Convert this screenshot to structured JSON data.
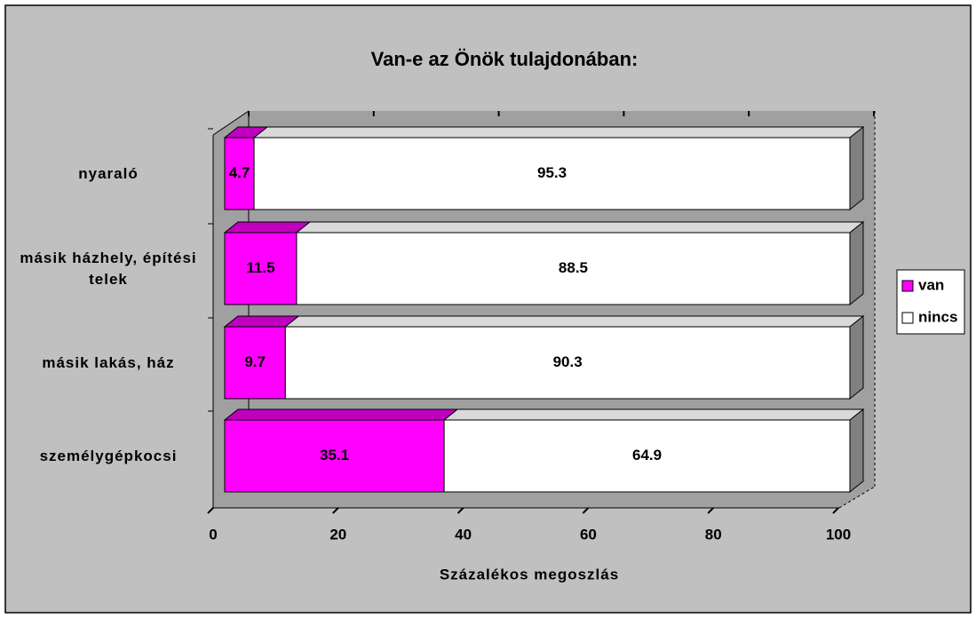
{
  "chart_data": {
    "type": "bar3d_stacked_horizontal",
    "title": "Van-e az Önök tulajdonában:",
    "xlabel": "Százalékos megoszlás",
    "categories": [
      "nyaraló",
      "másik házhely, építési telek",
      "másik lakás, ház",
      "személygépkocsi"
    ],
    "series": [
      {
        "name": "van",
        "color": "#ff00ff",
        "values": [
          4.7,
          11.5,
          9.7,
          35.1
        ]
      },
      {
        "name": "nincs",
        "color": "#ffffff",
        "values": [
          95.3,
          88.5,
          90.3,
          64.9
        ]
      }
    ],
    "xlim": [
      0,
      100
    ],
    "xticks": [
      0,
      20,
      40,
      60,
      80,
      100
    ],
    "legend": "right"
  }
}
